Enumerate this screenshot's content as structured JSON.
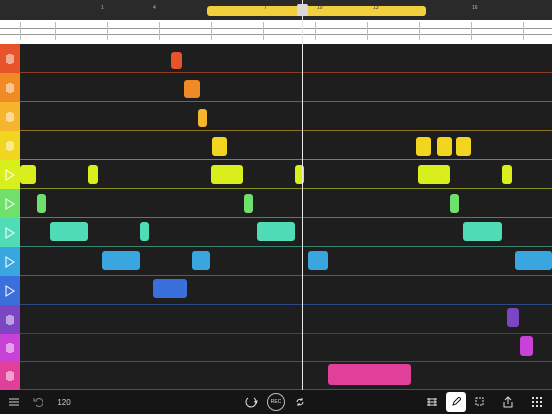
{
  "timeline": {
    "bar_numbers": [
      "1",
      "4",
      "7",
      "10",
      "13",
      "16"
    ]
  },
  "toolbar": {
    "tempo": "120",
    "rec_label": "REC"
  },
  "tracks": [
    {
      "color": "#e8542a"
    },
    {
      "color": "#f08a24"
    },
    {
      "color": "#f5b52c"
    },
    {
      "color": "#f2d51f"
    },
    {
      "color": "#d8ef1c"
    },
    {
      "color": "#6fe06b"
    },
    {
      "color": "#4fdcb7"
    },
    {
      "color": "#3aa6e0"
    },
    {
      "color": "#3b70dc"
    },
    {
      "color": "#7b45c4"
    },
    {
      "color": "#c842d8"
    },
    {
      "color": "#e0409a"
    }
  ]
}
